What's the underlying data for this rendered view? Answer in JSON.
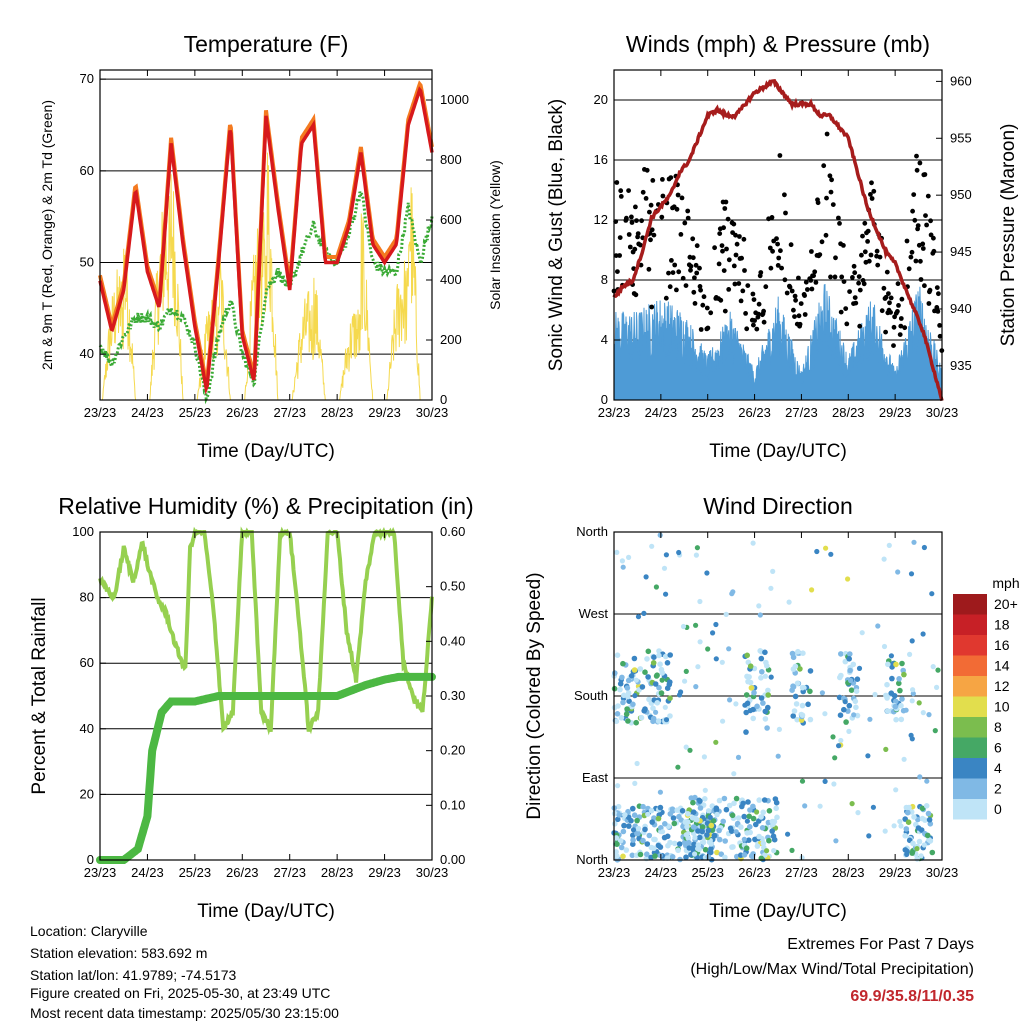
{
  "chart_data": [
    {
      "id": "temperature",
      "type": "line",
      "title": "Temperature (F)",
      "xlabel": "Time (Day/UTC)",
      "ylabel": "2m & 9m T (Red, Orange) & 2m Td (Green)",
      "y2label": "Solar Insolation (Yellow)",
      "x_ticks": [
        "23/23",
        "24/23",
        "25/23",
        "26/23",
        "27/23",
        "28/23",
        "29/23",
        "30/23"
      ],
      "xlim": [
        0,
        7
      ],
      "ylim": [
        35,
        71
      ],
      "y_ticks": [
        40,
        50,
        60,
        70
      ],
      "y2lim": [
        0,
        1100
      ],
      "y2_ticks": [
        0,
        200,
        400,
        600,
        800,
        1000
      ],
      "grid_y": [
        40,
        50,
        60,
        70
      ],
      "colors": {
        "t2m": "#d7191c",
        "t9m": "#f47a20",
        "td": "#3aaa35",
        "solar": "#f5d94e"
      },
      "series": [
        {
          "key": "t2m",
          "x": [
            0,
            0.25,
            0.5,
            0.75,
            1,
            1.25,
            1.5,
            1.75,
            2,
            2.25,
            2.5,
            2.75,
            3,
            3.25,
            3.5,
            3.75,
            4,
            4.25,
            4.5,
            4.75,
            5,
            5.25,
            5.5,
            5.75,
            6,
            6.25,
            6.5,
            6.75,
            7
          ],
          "values": [
            48,
            42.5,
            47,
            58,
            49,
            45,
            63,
            52,
            43,
            36,
            50,
            65,
            42,
            37,
            66,
            56,
            47,
            63,
            65,
            50,
            50,
            54,
            62,
            52,
            50,
            52,
            65,
            69,
            62
          ]
        },
        {
          "key": "td",
          "x": [
            0,
            0.25,
            0.5,
            0.75,
            1,
            1.25,
            1.5,
            1.75,
            2,
            2.25,
            2.5,
            2.75,
            3,
            3.25,
            3.5,
            3.75,
            4,
            4.25,
            4.5,
            4.75,
            5,
            5.25,
            5.5,
            5.75,
            6,
            6.25,
            6.5,
            6.75,
            7
          ],
          "values": [
            41,
            39,
            42,
            44,
            44,
            43,
            45,
            44,
            41,
            35,
            42,
            46,
            40,
            37,
            47,
            49,
            47,
            51,
            54,
            51,
            50,
            53,
            58,
            50,
            49,
            49,
            56,
            50,
            55
          ]
        },
        {
          "key": "solar",
          "x": [
            0.2,
            0.65,
            1.15,
            1.65,
            2.15,
            2.65,
            3.15,
            3.65,
            4.15,
            4.65,
            5.15,
            5.65,
            6.15,
            6.65
          ],
          "values": [
            450,
            700,
            720,
            960,
            360,
            650,
            650,
            1100,
            370,
            520,
            330,
            780,
            490,
            1050
          ]
        }
      ]
    },
    {
      "id": "winds",
      "type": "scatter",
      "title": "Winds (mph) & Pressure (mb)",
      "xlabel": "Time (Day/UTC)",
      "ylabel": "Sonic Wind & Gust (Blue, Black)",
      "y2label": "Station Pressure (Maroon)",
      "x_ticks": [
        "23/23",
        "24/23",
        "25/23",
        "26/23",
        "27/23",
        "28/23",
        "29/23",
        "30/23"
      ],
      "xlim": [
        0,
        7
      ],
      "ylim": [
        0,
        22
      ],
      "y_ticks": [
        0,
        4,
        8,
        12,
        16,
        20
      ],
      "y2lim": [
        932,
        961
      ],
      "y2_ticks": [
        935,
        940,
        945,
        950,
        955,
        960
      ],
      "grid_y": [
        4,
        8,
        12,
        16,
        20
      ],
      "colors": {
        "wind": "#4e9bd6",
        "gust": "#000000",
        "pressure": "#a61c1c"
      },
      "series": [
        {
          "key": "wind_envelope",
          "x": [
            0,
            0.5,
            1,
            1.5,
            2,
            2.5,
            3,
            3.5,
            4,
            4.5,
            5,
            5.5,
            6,
            6.5,
            7
          ],
          "values": [
            6,
            6,
            7,
            6,
            3,
            6,
            2,
            7,
            2,
            8,
            3,
            7,
            2,
            8,
            2
          ]
        },
        {
          "key": "pressure",
          "x": [
            0,
            0.2,
            0.4,
            0.6,
            0.8,
            1,
            1.2,
            1.4,
            1.6,
            1.8,
            2,
            2.2,
            2.4,
            2.6,
            2.8,
            3,
            3.2,
            3.4,
            3.6,
            3.8,
            4,
            4.2,
            4.4,
            4.6,
            4.8,
            5,
            5.2,
            5.4,
            5.6,
            5.8,
            6,
            6.2,
            6.4,
            6.6,
            6.8,
            7
          ],
          "values": [
            941,
            942,
            942.5,
            945,
            948,
            949,
            950,
            952,
            953,
            955,
            957,
            957.5,
            957,
            957,
            958,
            959,
            959.5,
            960,
            959,
            958,
            958,
            958,
            957,
            957,
            956,
            955,
            952,
            949,
            947,
            945,
            944,
            942,
            940,
            938,
            935,
            932
          ]
        }
      ]
    },
    {
      "id": "humidity",
      "type": "line",
      "title": "Relative Humidity (%) & Precipitation (in)",
      "xlabel": "Time (Day/UTC)",
      "ylabel": "Percent & Total Rainfall",
      "x_ticks": [
        "23/23",
        "24/23",
        "25/23",
        "26/23",
        "27/23",
        "28/23",
        "29/23",
        "30/23"
      ],
      "xlim": [
        0,
        7
      ],
      "ylim": [
        0,
        100
      ],
      "y_ticks": [
        0,
        20,
        40,
        60,
        80,
        100
      ],
      "y2lim": [
        0,
        0.6
      ],
      "y2_ticks": [
        "0.00",
        "0.10",
        "0.20",
        "0.30",
        "0.40",
        "0.50",
        "0.60"
      ],
      "grid_y": [
        20,
        40,
        60,
        80,
        100
      ],
      "colors": {
        "rh": "#96d050",
        "precip": "#4cb843"
      },
      "series": [
        {
          "key": "rh",
          "x": [
            0,
            0.3,
            0.5,
            0.7,
            0.9,
            1,
            1.2,
            1.4,
            1.6,
            1.8,
            1.9,
            2,
            2.2,
            2.4,
            2.6,
            2.8,
            3,
            3.2,
            3.4,
            3.6,
            3.8,
            4,
            4.2,
            4.4,
            4.6,
            4.8,
            5,
            5.2,
            5.4,
            5.6,
            5.8,
            6,
            6.2,
            6.4,
            6.6,
            6.8,
            7
          ],
          "values": [
            85,
            80,
            95,
            85,
            97,
            90,
            80,
            75,
            65,
            58,
            95,
            100,
            100,
            75,
            40,
            45,
            100,
            100,
            45,
            40,
            100,
            100,
            72,
            40,
            45,
            100,
            100,
            70,
            55,
            85,
            100,
            100,
            100,
            60,
            50,
            45,
            80
          ]
        },
        {
          "key": "precip",
          "x": [
            0,
            0.5,
            0.8,
            1,
            1.1,
            1.3,
            1.5,
            1.8,
            2,
            2.5,
            3,
            3.5,
            4,
            4.5,
            5,
            5.3,
            5.6,
            6,
            6.3,
            6.6,
            7
          ],
          "values": [
            0,
            0,
            0.02,
            0.08,
            0.2,
            0.27,
            0.29,
            0.29,
            0.29,
            0.3,
            0.3,
            0.3,
            0.3,
            0.3,
            0.3,
            0.31,
            0.32,
            0.33,
            0.335,
            0.335,
            0.335
          ]
        }
      ]
    },
    {
      "id": "direction",
      "type": "scatter",
      "title": "Wind Direction",
      "xlabel": "Time (Day/UTC)",
      "ylabel": "Direction (Colored By Speed)",
      "x_ticks": [
        "23/23",
        "24/23",
        "25/23",
        "26/23",
        "27/23",
        "28/23",
        "29/23",
        "30/23"
      ],
      "xlim": [
        0,
        7
      ],
      "ylim": [
        0,
        360
      ],
      "y_ticks": [
        "North",
        "East",
        "South",
        "West",
        "North"
      ],
      "grid_y": [
        90,
        180,
        270
      ],
      "legend": {
        "title": "mph",
        "labels": [
          "20+",
          "18",
          "16",
          "14",
          "12",
          "10",
          "8",
          "6",
          "4",
          "2",
          "0"
        ],
        "colors": [
          "#9e1a1c",
          "#c72026",
          "#e0382f",
          "#f26b35",
          "#f6a544",
          "#e2de4d",
          "#7bbd4e",
          "#45a865",
          "#3a85c3",
          "#80b9e5",
          "#bfe4f7"
        ]
      },
      "clusters": [
        {
          "x": [
            0,
            1.2
          ],
          "y": [
            150,
            230
          ]
        },
        {
          "x": [
            0,
            2.2
          ],
          "y": [
            0,
            60
          ]
        },
        {
          "x": [
            1.5,
            3.5
          ],
          "y": [
            0,
            70
          ]
        },
        {
          "x": [
            2.8,
            3.3
          ],
          "y": [
            140,
            230
          ]
        },
        {
          "x": [
            3.8,
            4.2
          ],
          "y": [
            150,
            230
          ]
        },
        {
          "x": [
            4.8,
            5.2
          ],
          "y": [
            150,
            230
          ]
        },
        {
          "x": [
            5.8,
            6.2
          ],
          "y": [
            150,
            220
          ]
        },
        {
          "x": [
            6.2,
            6.8
          ],
          "y": [
            0,
            60
          ]
        }
      ]
    }
  ],
  "info": {
    "location": "Location: Claryville",
    "elevation": "Station elevation: 583.692 m",
    "latlon": "Station lat/lon: 41.9789; -74.5173",
    "created": "Figure created on Fri, 2025-05-30, at 23:49 UTC",
    "recent": "Most recent data timestamp: 2025/05/30 23:15:00"
  },
  "extremes": {
    "title": "Extremes For Past 7 Days",
    "subtitle": "(High/Low/Max Wind/Total Precipitation)",
    "value": "69.9/35.8/11/0.35"
  }
}
